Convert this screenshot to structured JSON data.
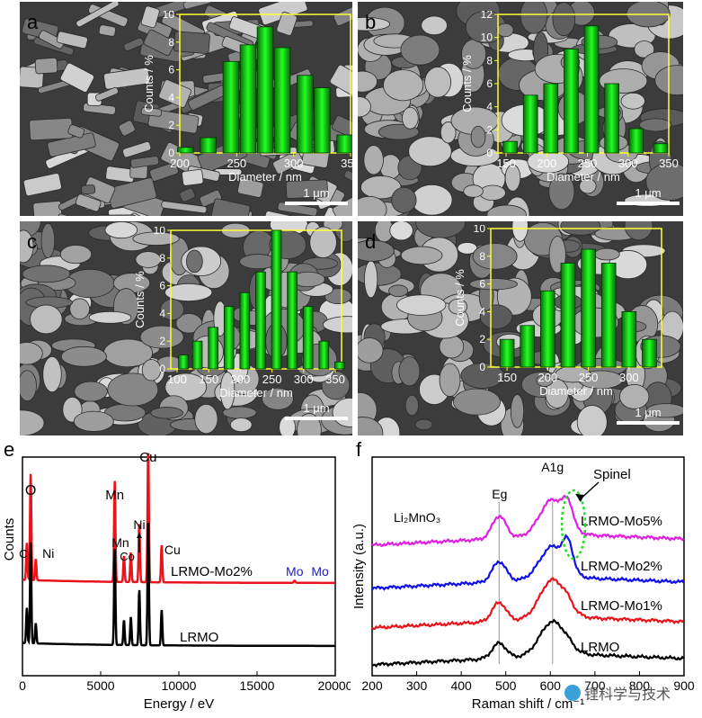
{
  "panels_sem": [
    {
      "letter": "a",
      "scale_bar": "1 μm",
      "chart_data": {
        "type": "bar",
        "xlabel": "Diameter / nm",
        "ylabel": "Counts / %",
        "xlim": [
          200,
          350
        ],
        "ylim": [
          0,
          10
        ],
        "xticks": [
          200,
          250,
          300,
          350
        ],
        "yticks": [
          0,
          2,
          4,
          6,
          8,
          10
        ],
        "x": [
          205,
          225,
          245,
          260,
          275,
          290,
          310,
          325,
          345
        ],
        "values": [
          0.4,
          1.1,
          6.6,
          7.8,
          9.1,
          7.6,
          5.6,
          4.7,
          1.3
        ]
      }
    },
    {
      "letter": "b",
      "scale_bar": "1 μm",
      "chart_data": {
        "type": "bar",
        "xlabel": "Diameter / nm",
        "ylabel": "Counts / %",
        "xlim": [
          140,
          350
        ],
        "ylim": [
          0,
          12
        ],
        "xticks": [
          150,
          200,
          250,
          300,
          350
        ],
        "yticks": [
          0,
          2,
          4,
          6,
          8,
          10,
          12
        ],
        "x": [
          155,
          180,
          205,
          230,
          255,
          280,
          310,
          340
        ],
        "values": [
          1,
          5,
          6,
          9,
          11,
          6,
          2.1,
          0.8
        ]
      }
    },
    {
      "letter": "c",
      "scale_bar": "1 μm",
      "chart_data": {
        "type": "bar",
        "xlabel": "Diameter / nm",
        "ylabel": "Counts / %",
        "xlim": [
          90,
          360
        ],
        "ylim": [
          0,
          10
        ],
        "xticks": [
          100,
          150,
          200,
          250,
          300,
          350
        ],
        "yticks": [
          0,
          2,
          4,
          6,
          8,
          10
        ],
        "x": [
          110,
          132,
          157,
          182,
          207,
          232,
          257,
          282,
          307,
          332,
          357
        ],
        "values": [
          1,
          2,
          3,
          4.5,
          5.5,
          7,
          10,
          7,
          4.5,
          2,
          0.5
        ]
      }
    },
    {
      "letter": "d",
      "scale_bar": "1 μm",
      "chart_data": {
        "type": "bar",
        "xlabel": "Diameter / nm",
        "ylabel": "Counts / %",
        "xlim": [
          130,
          340
        ],
        "ylim": [
          0,
          10
        ],
        "xticks": [
          150,
          200,
          250,
          300
        ],
        "yticks": [
          0,
          2,
          4,
          6,
          8,
          10
        ],
        "x": [
          150,
          175,
          200,
          225,
          250,
          275,
          300,
          325
        ],
        "values": [
          2,
          3,
          5.5,
          7.5,
          8.5,
          7.5,
          4,
          2
        ]
      }
    }
  ],
  "panel_e": {
    "letter": "e",
    "chart_data": {
      "type": "line",
      "xlabel": "Energy / eV",
      "ylabel": "Counts",
      "xlim": [
        0,
        20000
      ],
      "xticks": [
        0,
        5000,
        10000,
        15000,
        20000
      ],
      "series": [
        {
          "name": "LRMO-Mo2%",
          "color": "#e8141c"
        },
        {
          "name": "LRMO",
          "color": "#000000"
        }
      ],
      "peak_labels": [
        {
          "text": "O",
          "x": 525
        },
        {
          "text": "C",
          "x": 277
        },
        {
          "text": "Ni",
          "x": 850
        },
        {
          "text": "Mn",
          "x": 5900
        },
        {
          "text": "Mn",
          "x": 6490
        },
        {
          "text": "Co",
          "x": 6930
        },
        {
          "text": "Ni",
          "x": 7470
        },
        {
          "text": "Cu",
          "x": 8040
        },
        {
          "text": "Cu",
          "x": 8900
        },
        {
          "text": "Mo",
          "x": 17400
        },
        {
          "text": "Mo",
          "x": 19600
        }
      ]
    }
  },
  "panel_f": {
    "letter": "f",
    "chart_data": {
      "type": "line",
      "xlabel": "Raman shift / cm⁻¹",
      "ylabel": "Intensity (a.u.)",
      "xlim": [
        200,
        900
      ],
      "xticks": [
        200,
        300,
        400,
        500,
        600,
        700,
        800,
        900
      ],
      "series": [
        {
          "name": "LRMO-Mo5%",
          "color": "#e020e0"
        },
        {
          "name": "LRMO-Mo2%",
          "color": "#1010e8"
        },
        {
          "name": "LRMO-Mo1%",
          "color": "#e8141c"
        },
        {
          "name": "LRMO",
          "color": "#000000"
        }
      ],
      "annotations": {
        "li2mno3": "Li₂MnO₃",
        "eg": "Eg",
        "a1g": "A1g",
        "spinel": "Spinel"
      },
      "reference_lines_x": [
        485,
        605
      ]
    }
  },
  "watermark": "锂科学与技术"
}
